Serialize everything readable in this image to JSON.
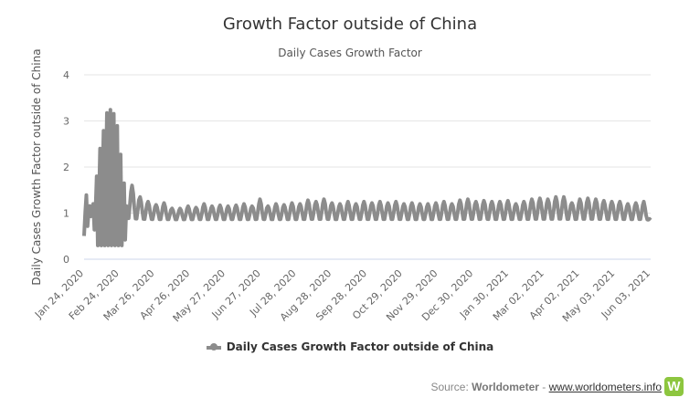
{
  "chart_data": {
    "type": "line",
    "title": "Growth Factor outside of China",
    "subtitle": "Daily Cases Growth Factor",
    "ylabel": "Daily Cases Growth Factor outside of China",
    "xlabel": "",
    "ylim": [
      0,
      4
    ],
    "yticks": [
      "0",
      "1",
      "2",
      "3",
      "4"
    ],
    "x_tick_labels": [
      "Jan 24, 2020",
      "Feb 24, 2020",
      "Mar 26, 2020",
      "Apr 26, 2020",
      "May 27, 2020",
      "Jun 27, 2020",
      "Jul 28, 2020",
      "Aug 28, 2020",
      "Sep 28, 2020",
      "Oct 29, 2020",
      "Nov 29, 2020",
      "Dec 30, 2020",
      "Jan 30, 2021",
      "Mar 02, 2021",
      "Apr 02, 2021",
      "May 03, 2021",
      "Jun 03, 2021"
    ],
    "x_range": [
      "2020-01-24",
      "2021-06-03"
    ],
    "grid": "horizontal",
    "legend_position": "bottom",
    "series": [
      {
        "name": "Daily Cases Growth Factor outside of China",
        "color": "#8c8c8c",
        "sample_interval_days": 7,
        "points": [
          {
            "x": "2020-01-24",
            "y": 1.55
          },
          {
            "x": "2020-01-31",
            "y": 1.0
          },
          {
            "x": "2020-02-07",
            "y": 2.4
          },
          {
            "x": "2020-02-14",
            "y": 3.3
          },
          {
            "x": "2020-02-21",
            "y": 3.1
          },
          {
            "x": "2020-02-28",
            "y": 1.65
          },
          {
            "x": "2020-03-06",
            "y": 1.6
          },
          {
            "x": "2020-03-13",
            "y": 1.35
          },
          {
            "x": "2020-03-20",
            "y": 1.25
          },
          {
            "x": "2020-03-27",
            "y": 1.18
          },
          {
            "x": "2020-04-03",
            "y": 1.22
          },
          {
            "x": "2020-04-10",
            "y": 1.1
          },
          {
            "x": "2020-04-17",
            "y": 1.1
          },
          {
            "x": "2020-04-24",
            "y": 1.15
          },
          {
            "x": "2020-05-01",
            "y": 1.12
          },
          {
            "x": "2020-05-08",
            "y": 1.2
          },
          {
            "x": "2020-05-15",
            "y": 1.15
          },
          {
            "x": "2020-05-22",
            "y": 1.17
          },
          {
            "x": "2020-05-29",
            "y": 1.15
          },
          {
            "x": "2020-06-05",
            "y": 1.17
          },
          {
            "x": "2020-06-12",
            "y": 1.2
          },
          {
            "x": "2020-06-19",
            "y": 1.15
          },
          {
            "x": "2020-06-26",
            "y": 1.3
          },
          {
            "x": "2020-07-03",
            "y": 1.15
          },
          {
            "x": "2020-07-10",
            "y": 1.2
          },
          {
            "x": "2020-07-17",
            "y": 1.18
          },
          {
            "x": "2020-07-24",
            "y": 1.22
          },
          {
            "x": "2020-07-31",
            "y": 1.2
          },
          {
            "x": "2020-08-07",
            "y": 1.28
          },
          {
            "x": "2020-08-14",
            "y": 1.25
          },
          {
            "x": "2020-08-21",
            "y": 1.3
          },
          {
            "x": "2020-08-28",
            "y": 1.22
          },
          {
            "x": "2020-09-04",
            "y": 1.2
          },
          {
            "x": "2020-09-11",
            "y": 1.25
          },
          {
            "x": "2020-09-18",
            "y": 1.2
          },
          {
            "x": "2020-09-25",
            "y": 1.25
          },
          {
            "x": "2020-10-02",
            "y": 1.22
          },
          {
            "x": "2020-10-09",
            "y": 1.25
          },
          {
            "x": "2020-10-16",
            "y": 1.22
          },
          {
            "x": "2020-10-23",
            "y": 1.25
          },
          {
            "x": "2020-10-30",
            "y": 1.2
          },
          {
            "x": "2020-11-06",
            "y": 1.22
          },
          {
            "x": "2020-11-13",
            "y": 1.2
          },
          {
            "x": "2020-11-20",
            "y": 1.2
          },
          {
            "x": "2020-11-27",
            "y": 1.22
          },
          {
            "x": "2020-12-04",
            "y": 1.25
          },
          {
            "x": "2020-12-11",
            "y": 1.2
          },
          {
            "x": "2020-12-18",
            "y": 1.28
          },
          {
            "x": "2020-12-25",
            "y": 1.3
          },
          {
            "x": "2021-01-01",
            "y": 1.25
          },
          {
            "x": "2021-01-08",
            "y": 1.27
          },
          {
            "x": "2021-01-15",
            "y": 1.25
          },
          {
            "x": "2021-01-22",
            "y": 1.25
          },
          {
            "x": "2021-01-29",
            "y": 1.27
          },
          {
            "x": "2021-02-05",
            "y": 1.2
          },
          {
            "x": "2021-02-12",
            "y": 1.25
          },
          {
            "x": "2021-02-19",
            "y": 1.3
          },
          {
            "x": "2021-02-26",
            "y": 1.32
          },
          {
            "x": "2021-03-05",
            "y": 1.3
          },
          {
            "x": "2021-03-12",
            "y": 1.35
          },
          {
            "x": "2021-03-19",
            "y": 1.35
          },
          {
            "x": "2021-03-26",
            "y": 1.22
          },
          {
            "x": "2021-04-02",
            "y": 1.3
          },
          {
            "x": "2021-04-09",
            "y": 1.32
          },
          {
            "x": "2021-04-16",
            "y": 1.3
          },
          {
            "x": "2021-04-23",
            "y": 1.27
          },
          {
            "x": "2021-04-30",
            "y": 1.25
          },
          {
            "x": "2021-05-07",
            "y": 1.25
          },
          {
            "x": "2021-05-14",
            "y": 1.2
          },
          {
            "x": "2021-05-21",
            "y": 1.22
          },
          {
            "x": "2021-05-28",
            "y": 1.25
          },
          {
            "x": "2021-06-03",
            "y": 0.85
          }
        ]
      }
    ]
  },
  "legend": {
    "label": "Daily Cases Growth Factor outside of China"
  },
  "credit": {
    "source_prefix": "Source: ",
    "source_name": "Worldometer",
    "separator": " - ",
    "link_text": "www.worldometers.info",
    "logo_letter": "W"
  }
}
